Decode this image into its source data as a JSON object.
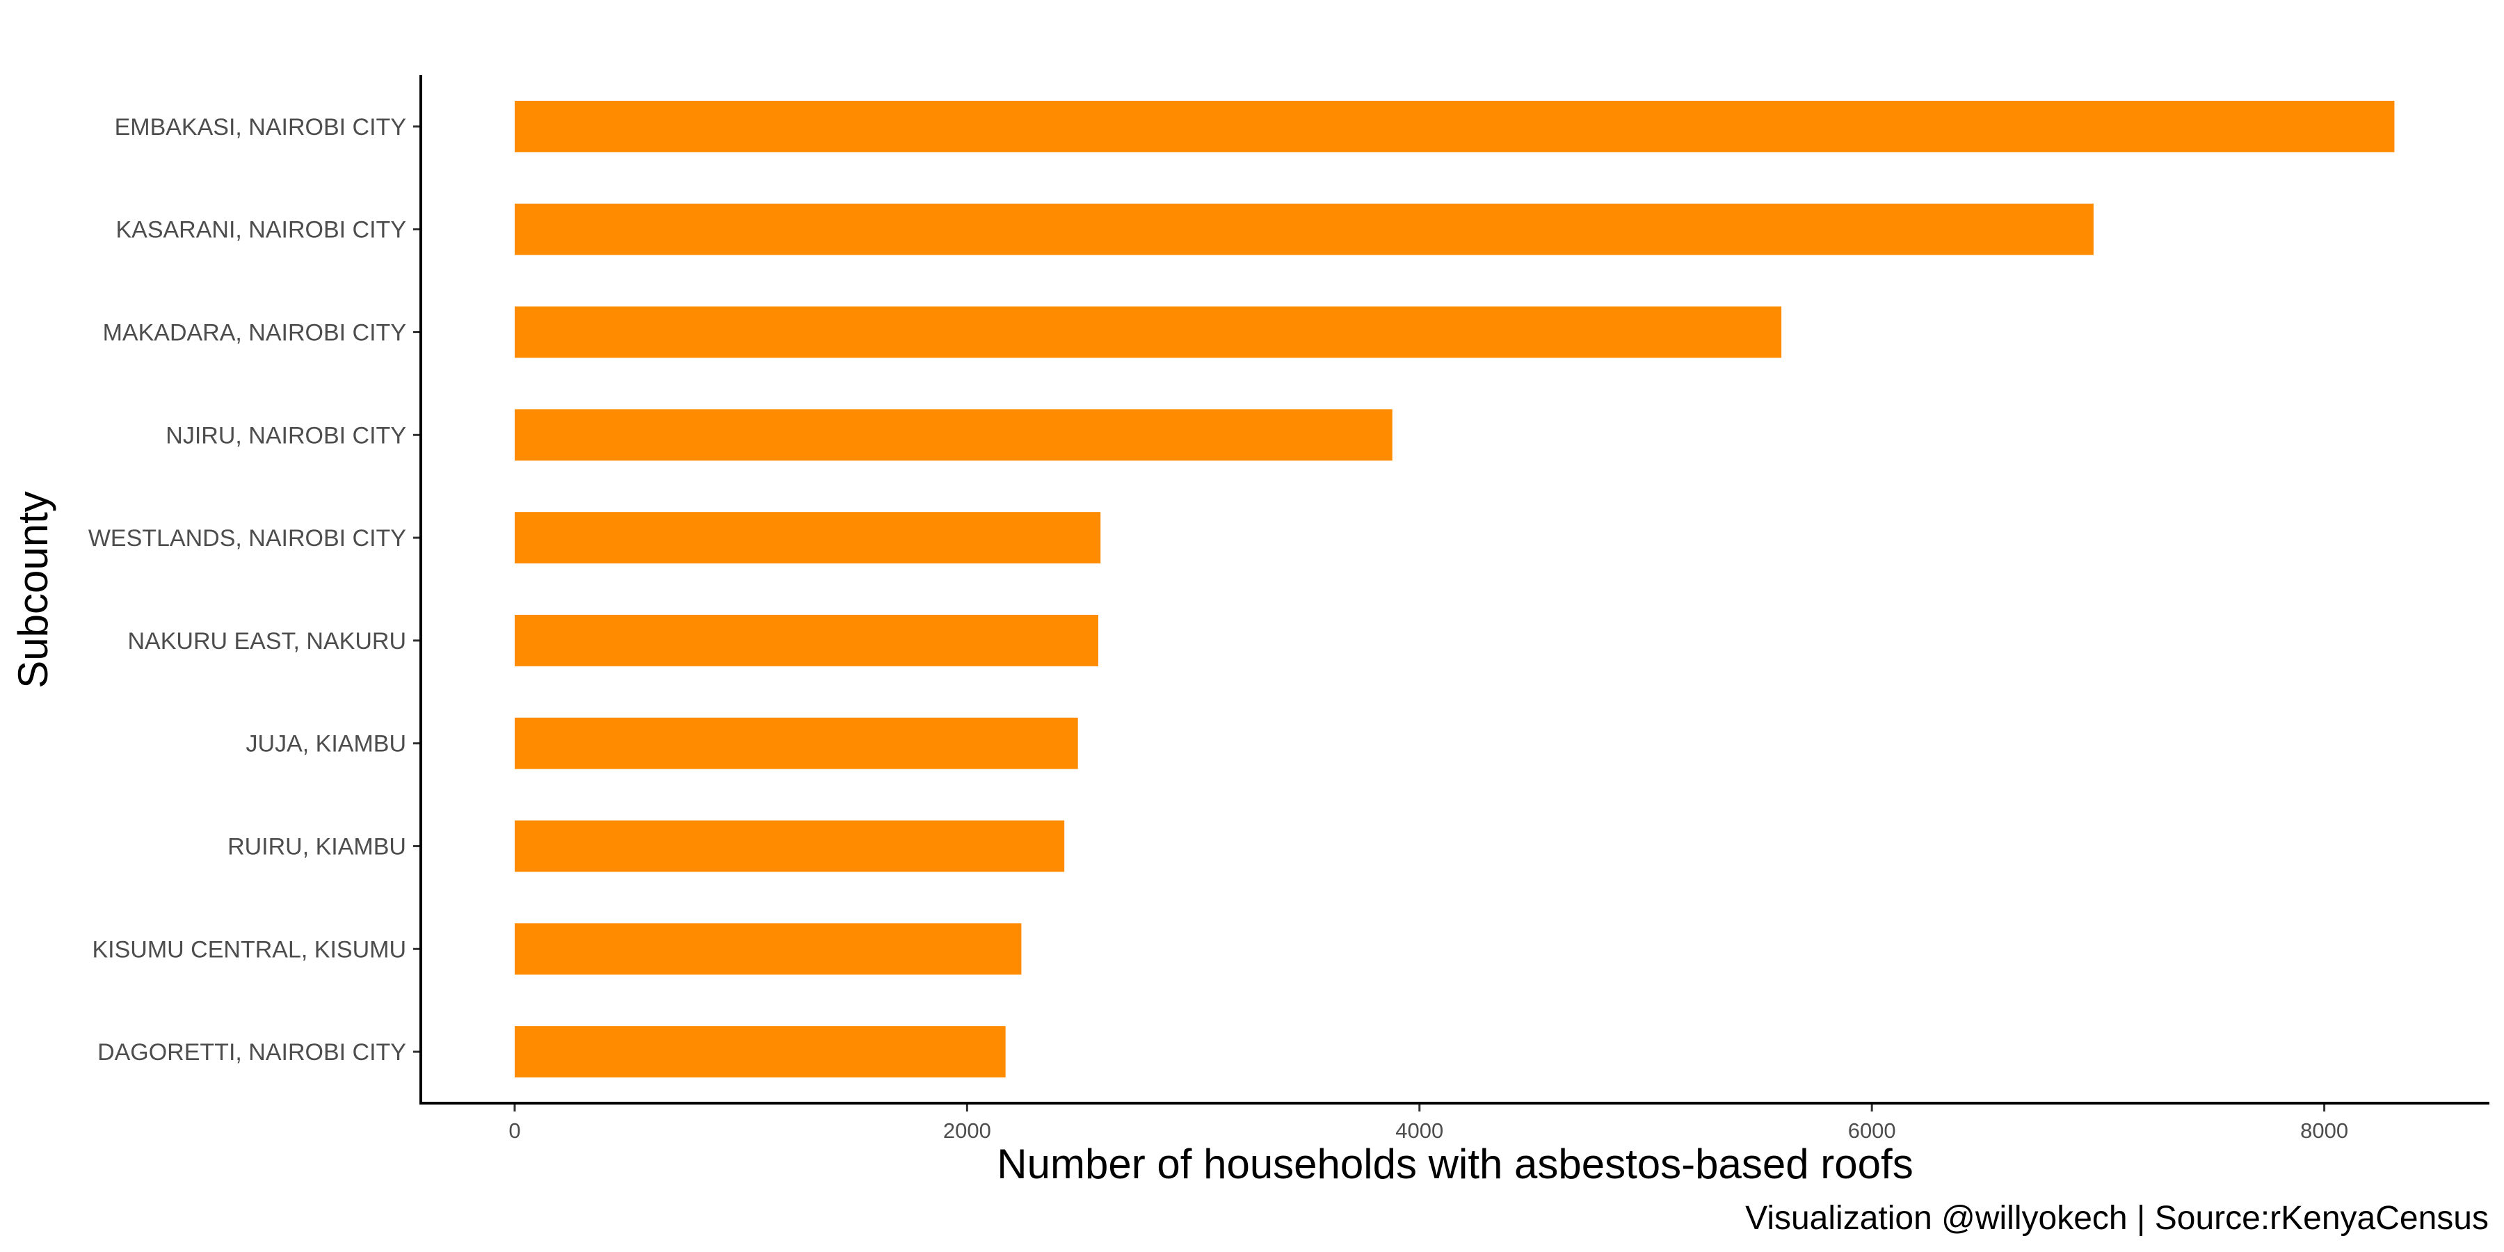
{
  "chart_data": {
    "type": "bar",
    "orientation": "horizontal",
    "categories": [
      "EMBAKASI, NAIROBI CITY",
      "KASARANI, NAIROBI CITY",
      "MAKADARA, NAIROBI CITY",
      "NJIRU, NAIROBI CITY",
      "WESTLANDS, NAIROBI CITY",
      "NAKURU EAST, NAKURU",
      "JUJA, KIAMBU",
      "RUIRU, KIAMBU",
      "KISUMU CENTRAL, KISUMU",
      "DAGORETTI, NAIROBI CITY"
    ],
    "values": [
      8310,
      6980,
      5600,
      3880,
      2590,
      2580,
      2490,
      2430,
      2240,
      2170
    ],
    "xlabel": "Number of households with asbestos-based roofs",
    "ylabel": "Subcounty",
    "xticks": [
      0,
      2000,
      4000,
      6000,
      8000
    ],
    "xtick_labels": [
      "0",
      "2000",
      "4000",
      "6000",
      "8000"
    ],
    "xlim": [
      -415,
      8730
    ],
    "bar_color": "#FF8C00",
    "grid": false,
    "legend": "none",
    "caption": "Visualization @willyokech | Source:rKenyaCensus"
  }
}
